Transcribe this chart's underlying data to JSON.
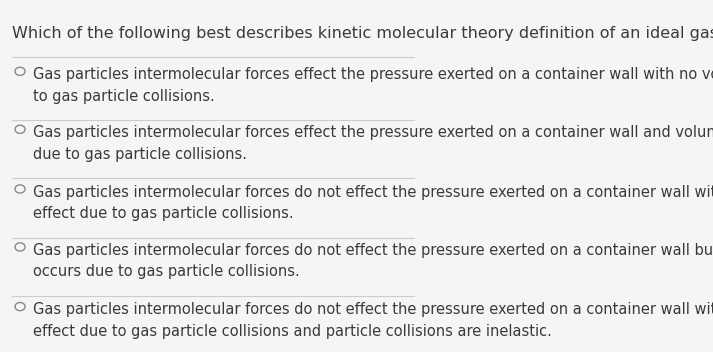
{
  "title": "Which of the following best describes kinetic molecular theory definition of an ideal gas?",
  "options": [
    "Gas particles intermolecular forces effect the pressure exerted on a container wall with no volume effect due\nto gas particle collisions.",
    "Gas particles intermolecular forces effect the pressure exerted on a container wall and volume effect occurs\ndue to gas particle collisions.",
    "Gas particles intermolecular forces do not effect the pressure exerted on a container wall with no volume\neffect due to gas particle collisions.",
    "Gas particles intermolecular forces do not effect the pressure exerted on a container wall but volume effect\noccurs due to gas particle collisions.",
    "Gas particles intermolecular forces do not effect the pressure exerted on a container wall with no volume\neffect due to gas particle collisions and particle collisions are inelastic."
  ],
  "bg_color": "#f5f5f5",
  "text_color": "#3a3a3a",
  "line_color": "#cccccc",
  "circle_color": "#888888",
  "title_fontsize": 11.5,
  "option_fontsize": 10.5
}
